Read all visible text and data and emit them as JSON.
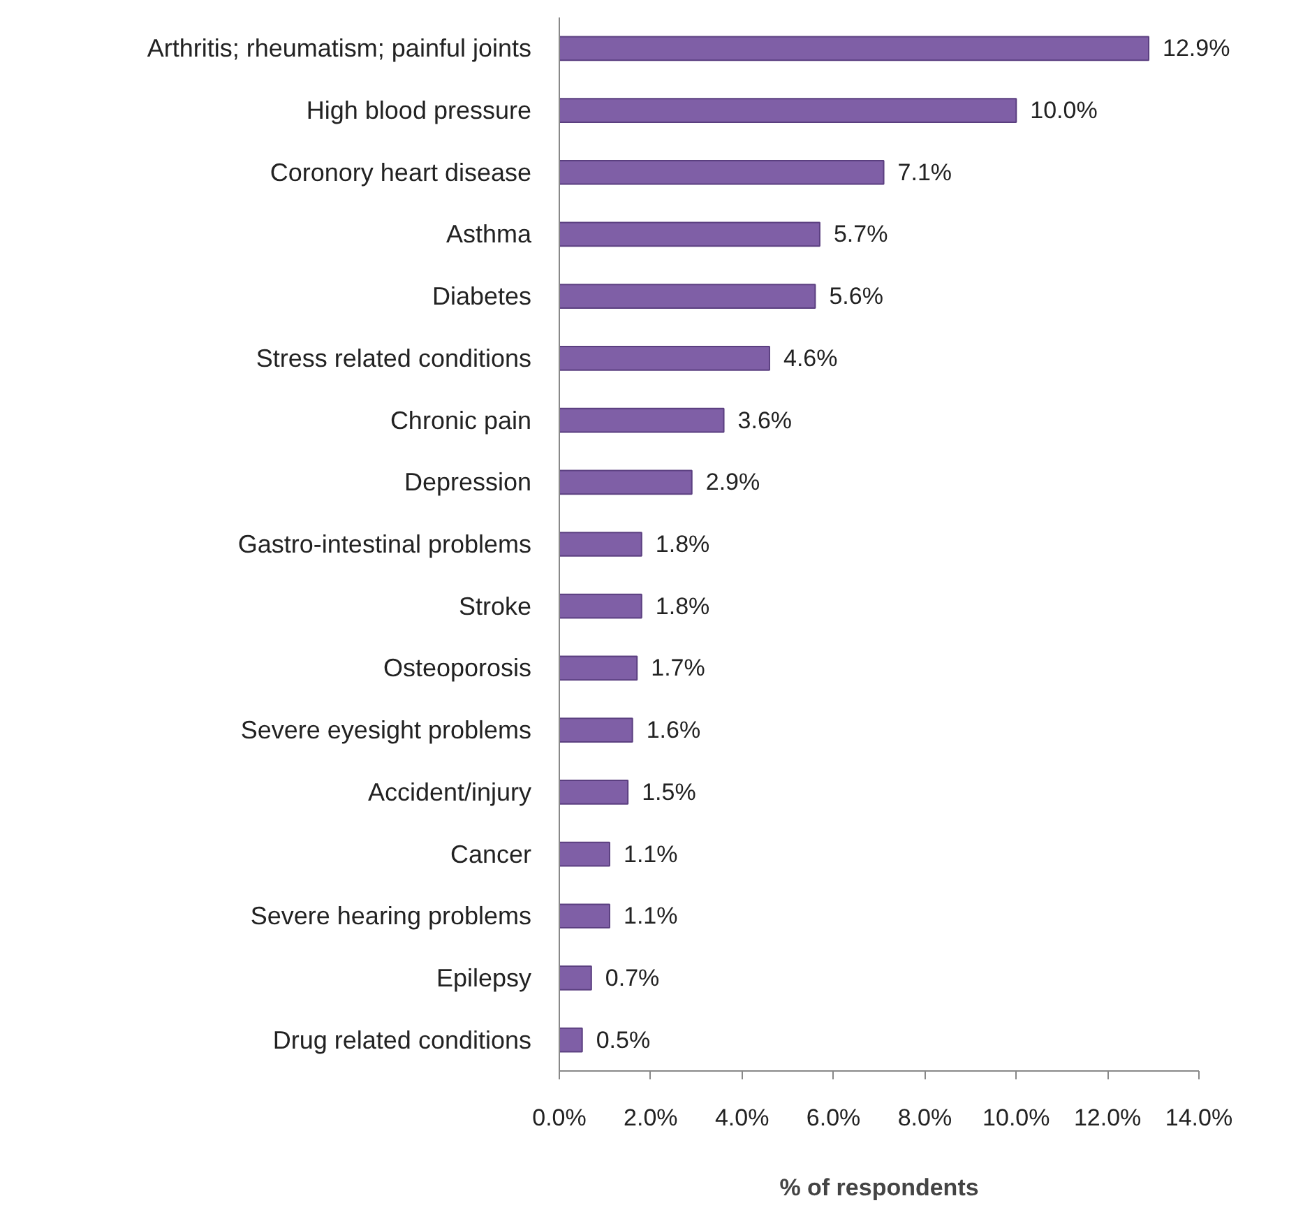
{
  "chart_data": {
    "type": "bar",
    "orientation": "horizontal",
    "xlabel": "% of respondents",
    "categories": [
      "Arthritis; rheumatism; painful joints",
      "High blood pressure",
      "Coronory heart disease",
      "Asthma",
      "Diabetes",
      "Stress related conditions",
      "Chronic pain",
      "Depression",
      "Gastro-intestinal problems",
      "Stroke",
      "Osteoporosis",
      "Severe eyesight problems",
      "Accident/injury",
      "Cancer",
      "Severe hearing problems",
      "Epilepsy",
      "Drug related conditions"
    ],
    "values": [
      12.9,
      10.0,
      7.1,
      5.7,
      5.6,
      4.6,
      3.6,
      2.9,
      1.8,
      1.8,
      1.7,
      1.6,
      1.5,
      1.1,
      1.1,
      0.7,
      0.5
    ],
    "value_labels": [
      "12.9%",
      "10.0%",
      "7.1%",
      "5.7%",
      "5.6%",
      "4.6%",
      "3.6%",
      "2.9%",
      "1.8%",
      "1.8%",
      "1.7%",
      "1.6%",
      "1.5%",
      "1.1%",
      "1.1%",
      "0.7%",
      "0.5%"
    ],
    "color": "#7f5fa6",
    "xlim": [
      0,
      14
    ],
    "xticks": [
      {
        "value": 0,
        "label": "0.0%"
      },
      {
        "value": 2,
        "label": "2.0%"
      },
      {
        "value": 4,
        "label": "4.0%"
      },
      {
        "value": 6,
        "label": "6.0%"
      },
      {
        "value": 8,
        "label": "8.0%"
      },
      {
        "value": 10,
        "label": "10.0%"
      },
      {
        "value": 12,
        "label": "12.0%"
      },
      {
        "value": 14,
        "label": "14.0%"
      }
    ],
    "grid": false
  }
}
